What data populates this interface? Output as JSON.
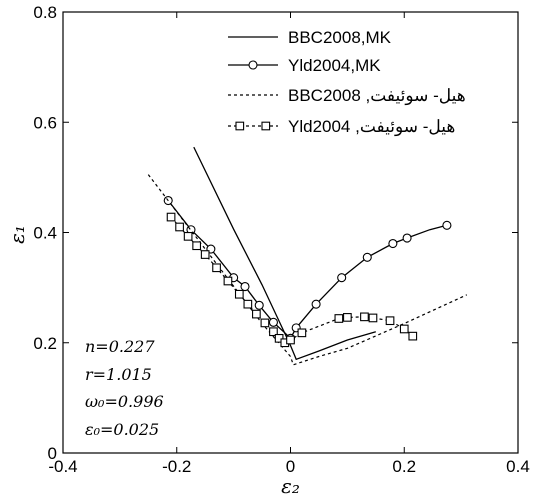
{
  "chart_data": {
    "type": "line",
    "xlabel": "ε₂",
    "ylabel": "ε₁",
    "xlim": [
      -0.4,
      0.4
    ],
    "ylim": [
      0,
      0.8
    ],
    "xticks": [
      -0.4,
      -0.2,
      0,
      0.2,
      0.4
    ],
    "yticks": [
      0,
      0.2,
      0.4,
      0.6,
      0.8
    ],
    "x_tick_labels": [
      "-0.4",
      "-0.2",
      "0",
      "0.2",
      "0.4"
    ],
    "y_tick_labels": [
      "0",
      "0.2",
      "0.4",
      "0.6",
      "0.8"
    ],
    "grid": false,
    "legend_position": "top-right",
    "series": [
      {
        "name": "BBC2008,MK",
        "line": "solid",
        "marker": "none",
        "x": [
          -0.17,
          -0.1,
          -0.05,
          0.0,
          0.01,
          0.05,
          0.1,
          0.15
        ],
        "y": [
          0.555,
          0.406,
          0.305,
          0.195,
          0.17,
          0.185,
          0.205,
          0.22
        ]
      },
      {
        "name": "Yld2004,MK",
        "line": "solid",
        "marker": "circle",
        "x": [
          -0.215,
          -0.175,
          -0.14,
          -0.1,
          -0.08,
          -0.055,
          -0.03,
          -0.01,
          0.0,
          0.01,
          0.045,
          0.09,
          0.135,
          0.18,
          0.205,
          0.245,
          0.275
        ],
        "y": [
          0.458,
          0.405,
          0.37,
          0.318,
          0.302,
          0.268,
          0.237,
          0.218,
          0.208,
          0.227,
          0.27,
          0.318,
          0.355,
          0.38,
          0.39,
          0.405,
          0.413
        ],
        "markers_x": [
          -0.215,
          -0.175,
          -0.14,
          -0.1,
          -0.08,
          -0.055,
          -0.03,
          0.0,
          0.01,
          0.045,
          0.09,
          0.135,
          0.18,
          0.205,
          0.275
        ],
        "markers_y": [
          0.458,
          0.405,
          0.37,
          0.318,
          0.302,
          0.268,
          0.237,
          0.208,
          0.227,
          0.27,
          0.318,
          0.355,
          0.38,
          0.39,
          0.413
        ]
      },
      {
        "name": "BBC2008 ,هیل- سوئیفت",
        "line": "dotted",
        "marker": "none",
        "x": [
          -0.25,
          -0.15,
          -0.05,
          0.0,
          0.005,
          0.05,
          0.1,
          0.2,
          0.31
        ],
        "y": [
          0.505,
          0.37,
          0.235,
          0.175,
          0.16,
          0.175,
          0.19,
          0.235,
          0.287
        ]
      },
      {
        "name": "Yld2004 ,هیل- سوئیفت",
        "line": "dotted",
        "marker": "square",
        "x": [
          -0.21,
          -0.195,
          -0.18,
          -0.165,
          -0.15,
          -0.13,
          -0.11,
          -0.09,
          -0.075,
          -0.06,
          -0.045,
          -0.03,
          -0.02,
          -0.01,
          0.0,
          0.02,
          0.085,
          0.1,
          0.13,
          0.145,
          0.175,
          0.2,
          0.215
        ],
        "y": [
          0.428,
          0.41,
          0.393,
          0.376,
          0.36,
          0.336,
          0.312,
          0.288,
          0.27,
          0.252,
          0.236,
          0.22,
          0.208,
          0.2,
          0.205,
          0.218,
          0.244,
          0.246,
          0.247,
          0.245,
          0.24,
          0.225,
          0.212
        ]
      }
    ],
    "annotations": [
      {
        "text": "n=0.227"
      },
      {
        "text": "r=1.015"
      },
      {
        "text": "ω₀=0.996"
      },
      {
        "text": "ε₀=0.025"
      }
    ]
  }
}
